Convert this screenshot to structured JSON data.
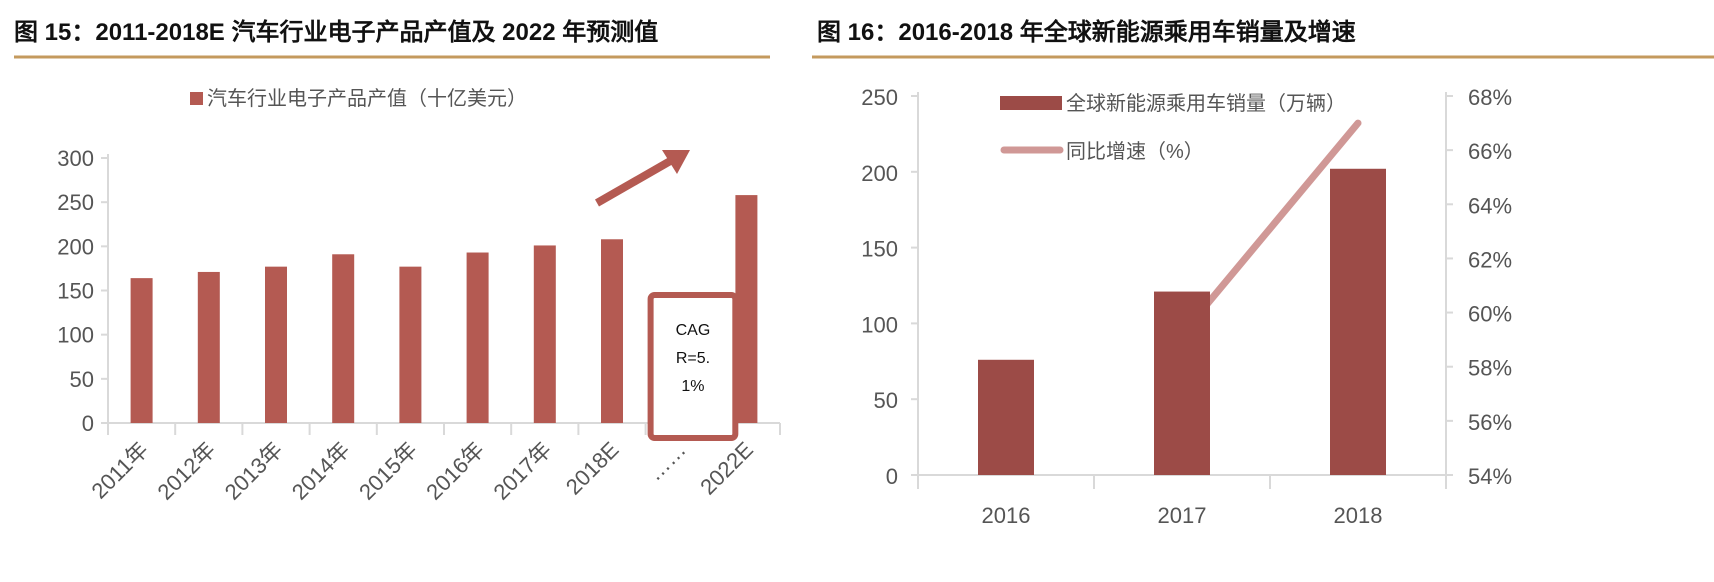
{
  "colors": {
    "rule": "#c49a5e",
    "bar1": "#b45a52",
    "bar2": "#9c4b47",
    "line2": "#d09896",
    "axis": "#d9d9d9"
  },
  "chart_data": [
    {
      "type": "bar",
      "title": "图 15：2011-2018E 汽车行业电子产品产值及 2022 年预测值",
      "legend": "top-center",
      "categories": [
        "2011年",
        "2012年",
        "2013年",
        "2014年",
        "2015年",
        "2016年",
        "2017年",
        "2018E",
        "……",
        "2022E"
      ],
      "series": [
        {
          "name": "汽车行业电子产品产值（十亿美元）",
          "values": [
            164,
            171,
            177,
            191,
            177,
            193,
            201,
            208,
            null,
            258
          ]
        }
      ],
      "ylim": [
        0,
        300
      ],
      "yticks": [
        "0",
        "50",
        "100",
        "150",
        "200",
        "250",
        "300"
      ],
      "annotation": {
        "lines": [
          "CAG",
          "R=5.",
          "1%"
        ],
        "arrow": "up-right"
      },
      "grid": false
    },
    {
      "type": "bar+line",
      "title": "图 16：2016-2018 年全球新能源乘用车销量及增速",
      "legend": "top-center",
      "categories": [
        "2016",
        "2017",
        "2018"
      ],
      "series": [
        {
          "name": "全球新能源乘用车销量（万辆）",
          "type": "bar",
          "axis": "left",
          "values": [
            76,
            121,
            202
          ]
        },
        {
          "name": "同比增速（%）",
          "type": "line",
          "axis": "right",
          "values": [
            null,
            59.2,
            67.0
          ]
        }
      ],
      "ylim": [
        0,
        250
      ],
      "yticks": [
        "0",
        "50",
        "100",
        "150",
        "200",
        "250"
      ],
      "y2lim": [
        54,
        68
      ],
      "y2ticks": [
        "54%",
        "56%",
        "58%",
        "60%",
        "62%",
        "64%",
        "66%",
        "68%"
      ],
      "grid": false
    }
  ]
}
